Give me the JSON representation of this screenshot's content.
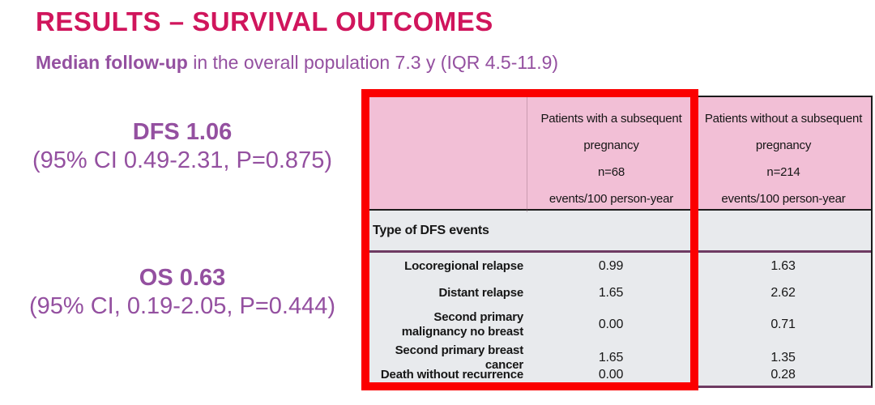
{
  "slide": {
    "title": "RESULTS – SURVIVAL OUTCOMES",
    "subtitle_lead": "Median follow-up",
    "subtitle_rest": "in the overall population 7.3 y (IQR 4.5-11.9)",
    "stats": [
      {
        "headline": "DFS 1.06",
        "detail": "(95% CI 0.49-2.31, P=0.875)"
      },
      {
        "headline": "OS 0.63",
        "detail": "(95% CI, 0.19-2.05, P=0.444)"
      }
    ]
  },
  "table": {
    "header": {
      "col_with": {
        "title": "Patients with a subsequent pregnancy",
        "n": "n=68",
        "unit": "events/100 person-year"
      },
      "col_without": {
        "title": "Patients without a subsequent pregnancy",
        "n": "n=214",
        "unit": "events/100 person-year"
      }
    },
    "section_label": "Type of DFS events",
    "rows": [
      {
        "label": "Locoregional relapse",
        "with_pregnancy": "0.99",
        "without_pregnancy": "1.63"
      },
      {
        "label": "Distant relapse",
        "with_pregnancy": "1.65",
        "without_pregnancy": "2.62"
      },
      {
        "label": "Second primary malignancy no breast",
        "with_pregnancy": "0.00",
        "without_pregnancy": "0.71"
      },
      {
        "label": "Second primary breast cancer",
        "with_pregnancy": "1.65",
        "without_pregnancy": "1.35"
      },
      {
        "label": "Death without recurrence",
        "with_pregnancy": "0.00",
        "without_pregnancy": "0.28"
      }
    ]
  },
  "colors": {
    "title_magenta": "#D0155C",
    "purple_text": "#9450A0",
    "header_pink": "#F2BFD6",
    "body_gray": "#E8EAED",
    "divider_maroon": "#6E3A62",
    "highlight_red": "#FB0000"
  },
  "chart_data": {
    "type": "table",
    "title": "Type of DFS events (events/100 person-year)",
    "columns": [
      "Type of DFS events",
      "Patients with a subsequent pregnancy (n=68) events/100 person-year",
      "Patients without a subsequent pregnancy (n=214) events/100 person-year"
    ],
    "rows": [
      [
        "Locoregional relapse",
        0.99,
        1.63
      ],
      [
        "Distant relapse",
        1.65,
        2.62
      ],
      [
        "Second primary malignancy no breast",
        0.0,
        0.71
      ],
      [
        "Second primary breast cancer",
        1.65,
        1.35
      ],
      [
        "Death without recurrence",
        0.0,
        0.28
      ]
    ],
    "annotations": {
      "median_follow_up": "7.3 y (IQR 4.5-11.9)",
      "DFS": "1.06 (95% CI 0.49-2.31, P=0.875)",
      "OS": "0.63 (95% CI, 0.19-2.05, P=0.444)",
      "highlight": "red box around 'Patients with a subsequent pregnancy' column"
    }
  }
}
